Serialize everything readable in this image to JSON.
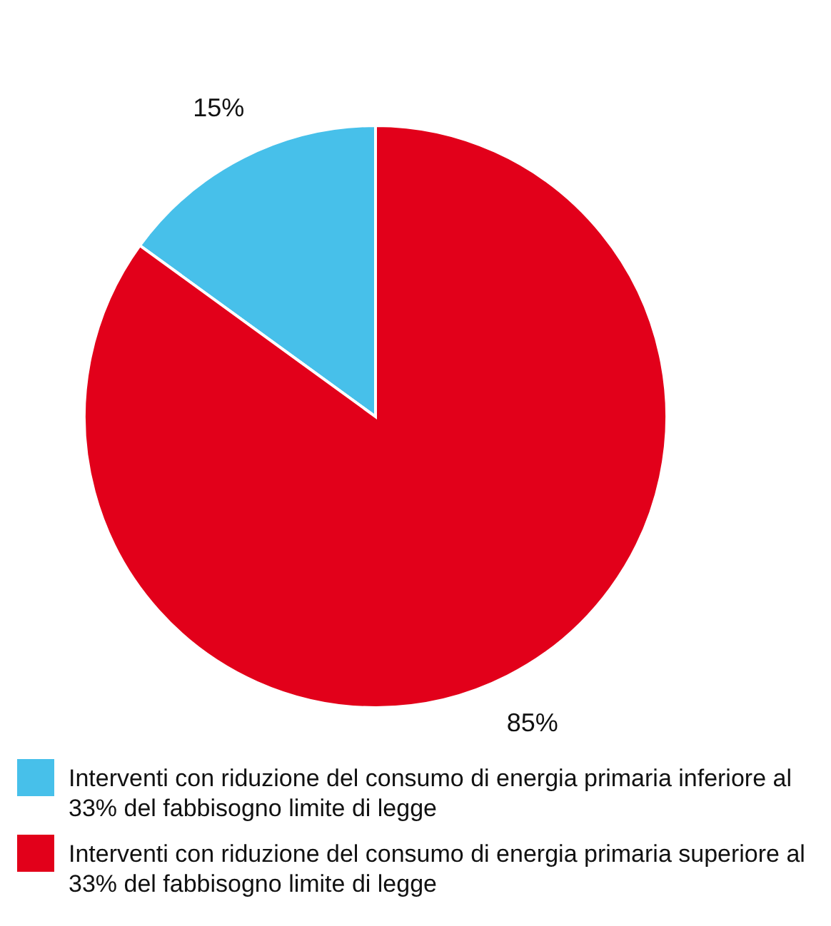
{
  "chart_data": {
    "type": "pie",
    "categories": [
      "Interventi con riduzione del consumo di energia primaria inferiore al 33% del fabbisogno limite di legge",
      "Interventi con riduzione del consumo di energia primaria superiore al 33% del fabbisogno limite di legge"
    ],
    "values": [
      15,
      85
    ],
    "colors": [
      "#47c0ea",
      "#e2001a"
    ],
    "value_labels": [
      "15%",
      "85%"
    ],
    "legend": "bottom"
  }
}
